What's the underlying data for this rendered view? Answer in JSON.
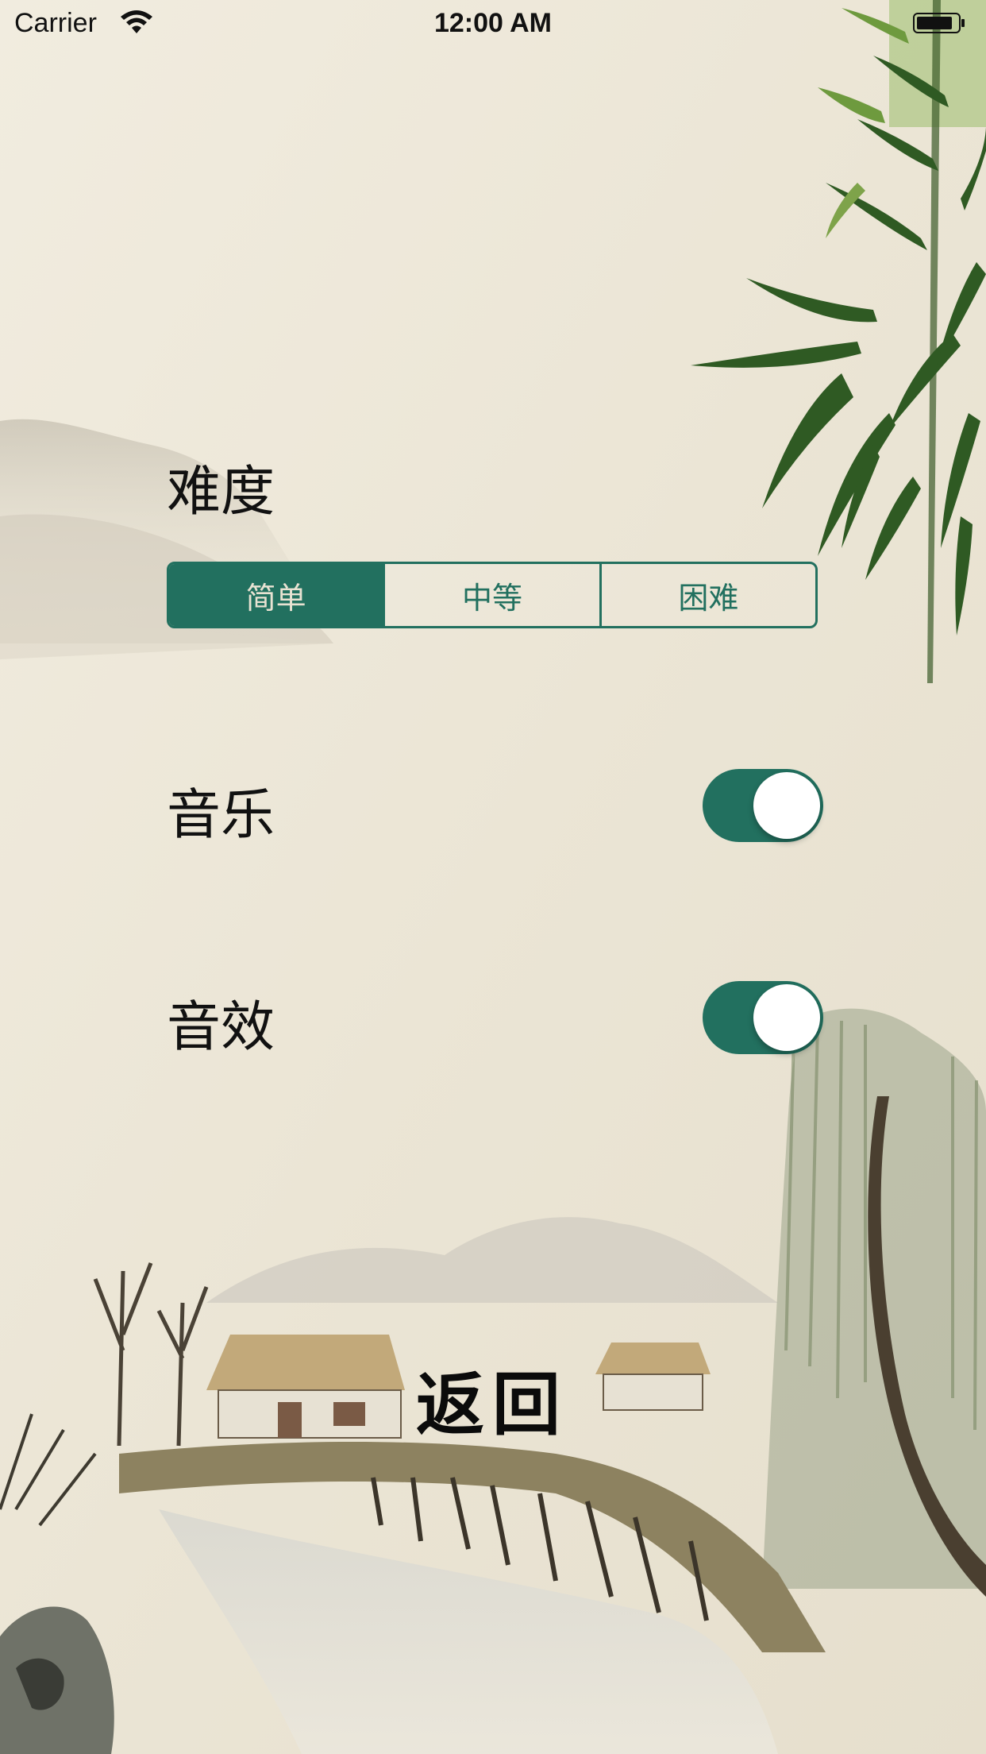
{
  "status_bar": {
    "carrier": "Carrier",
    "time": "12:00 AM",
    "icons": [
      "wifi-icon",
      "battery-icon"
    ]
  },
  "settings": {
    "difficulty": {
      "label": "难度",
      "options": [
        "简单",
        "中等",
        "困难"
      ],
      "selected": "简单"
    },
    "music": {
      "label": "音乐",
      "on": true
    },
    "sound_effects": {
      "label": "音效",
      "on": true
    }
  },
  "back_button": {
    "label": "返回"
  },
  "colors": {
    "accent": "#22705f",
    "paper": "#efe9da",
    "text": "#111111"
  },
  "decoration": [
    "bamboo-illustration",
    "willow-tree-illustration",
    "village-landscape-illustration",
    "mountains-illustration"
  ]
}
